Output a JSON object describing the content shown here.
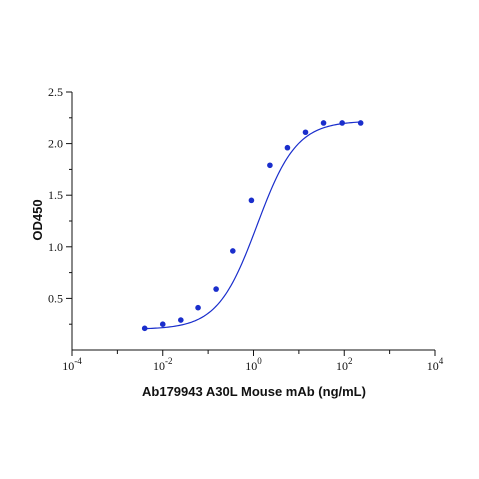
{
  "chart_data": {
    "type": "scatter",
    "title": "",
    "xlabel": "Ab179943 A30L Mouse mAb (ng/mL)",
    "ylabel": "OD450",
    "x_scale": "log10",
    "xlim": [
      0.0001,
      10000
    ],
    "ylim": [
      0,
      2.5
    ],
    "x_ticks": [
      {
        "base": "10",
        "exp": "-4",
        "value": 0.0001
      },
      {
        "base": "10",
        "exp": "-2",
        "value": 0.01
      },
      {
        "base": "10",
        "exp": "0",
        "value": 1
      },
      {
        "base": "10",
        "exp": "2",
        "value": 100
      },
      {
        "base": "10",
        "exp": "4",
        "value": 10000
      }
    ],
    "y_ticks": [
      "0.5",
      "1.0",
      "1.5",
      "2.0",
      "2.5"
    ],
    "grid": false,
    "legend": "none",
    "point_color": "#1a2ecc",
    "curve_color": "#1a2ecc",
    "series": [
      {
        "x": [
          0.004,
          0.01,
          0.025,
          0.06,
          0.15,
          0.35,
          0.9,
          2.3,
          5.6,
          14,
          35,
          90,
          230
        ],
        "y": [
          0.21,
          0.25,
          0.29,
          0.41,
          0.59,
          0.96,
          1.45,
          1.79,
          1.96,
          2.11,
          2.2,
          2.2,
          2.2
        ]
      }
    ]
  }
}
